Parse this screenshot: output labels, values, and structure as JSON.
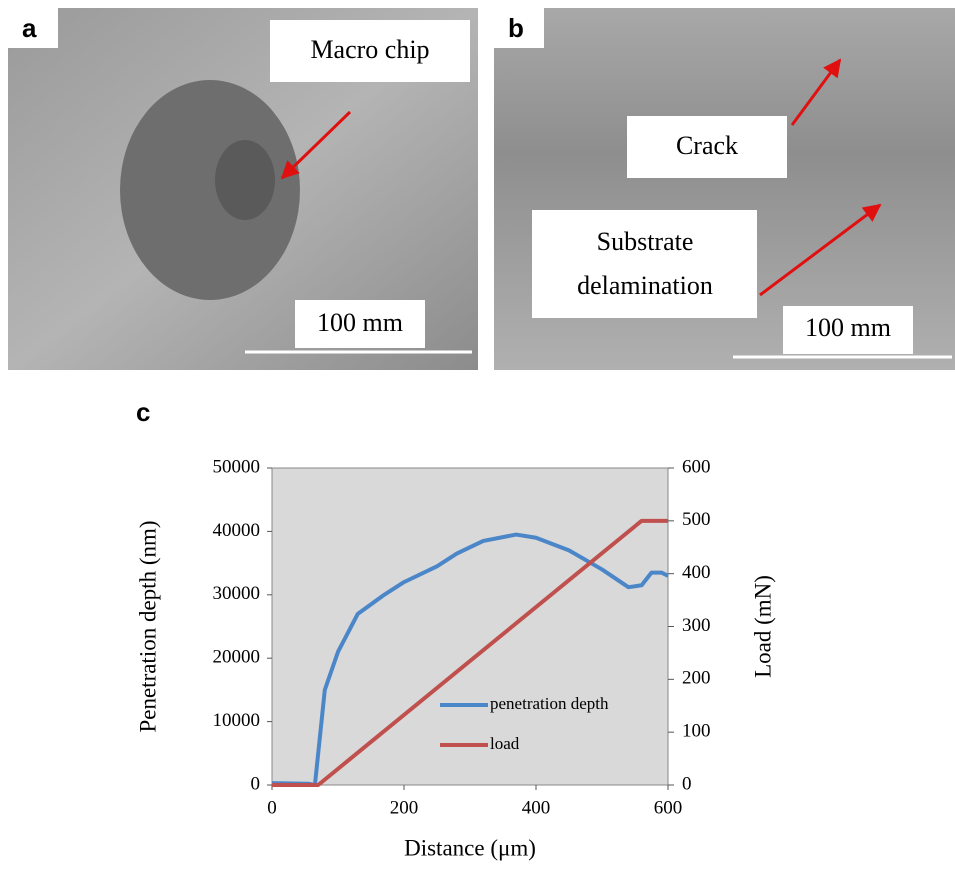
{
  "panels": {
    "a": {
      "label": "a",
      "annotation": "Macro chip",
      "scale": "100 mm"
    },
    "b": {
      "label": "b",
      "crack": "Crack",
      "delamination": [
        "Substrate",
        "delamination"
      ],
      "scale": "100 mm"
    },
    "c": {
      "label": "c"
    }
  },
  "chart_data": {
    "type": "line",
    "xlabel": "Distance  (μm)",
    "ylabel": "Penetration depth (nm)",
    "y2label": "Load (mN)",
    "xlim": [
      0,
      600
    ],
    "xticks": [
      0,
      200,
      400,
      600
    ],
    "ylim": [
      0,
      50000
    ],
    "yticks": [
      0,
      10000,
      20000,
      30000,
      40000,
      50000
    ],
    "y2lim": [
      0,
      600
    ],
    "y2ticks": [
      0,
      100,
      200,
      300,
      400,
      500,
      600
    ],
    "background": "#d9d9d9",
    "series": [
      {
        "name": "penetration depth",
        "color": "#4a86c8",
        "x": [
          0,
          55,
          65,
          80,
          100,
          130,
          170,
          200,
          250,
          280,
          320,
          370,
          400,
          450,
          500,
          540,
          560,
          575,
          590,
          600
        ],
        "values": [
          300,
          200,
          0,
          15000,
          21000,
          27000,
          30000,
          32000,
          34500,
          36500,
          38500,
          39500,
          39000,
          37000,
          34000,
          31200,
          31500,
          33500,
          33500,
          33000
        ]
      },
      {
        "name": "load",
        "color": "#c0504d",
        "axis": "y2",
        "x": [
          0,
          70,
          560,
          600
        ],
        "values": [
          0,
          0,
          500,
          500
        ]
      }
    ]
  }
}
